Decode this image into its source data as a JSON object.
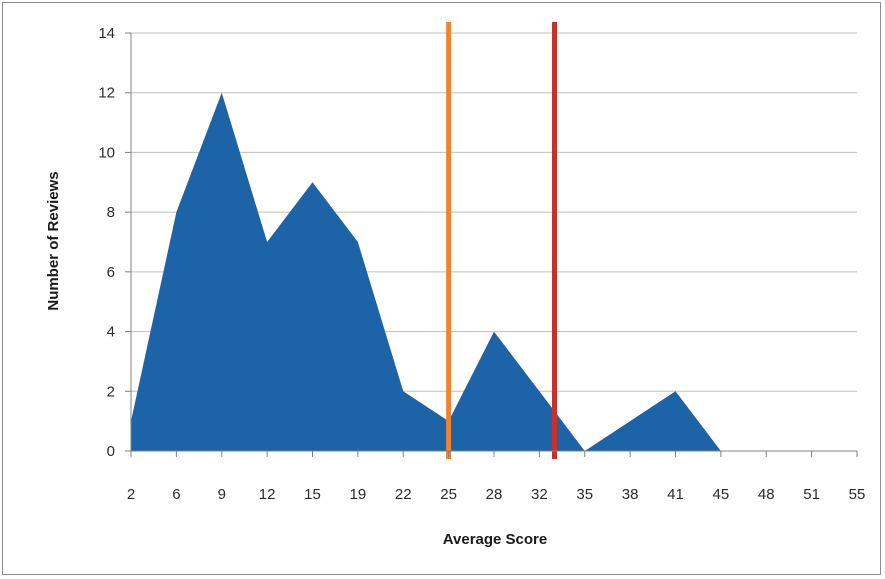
{
  "chart_data": {
    "type": "area",
    "xlabel": "Average Score",
    "ylabel": "Number of Reviews",
    "categories": [
      "2",
      "6",
      "9",
      "12",
      "15",
      "19",
      "22",
      "25",
      "28",
      "32",
      "35",
      "38",
      "41",
      "45",
      "48",
      "51",
      "55"
    ],
    "values": [
      1,
      8,
      12,
      7,
      9,
      7,
      2,
      1,
      4,
      2,
      0,
      1,
      2,
      0,
      null,
      null,
      null
    ],
    "ylim": [
      0,
      14
    ],
    "yticks": [
      "0",
      "2",
      "4",
      "6",
      "8",
      "10",
      "12",
      "14"
    ],
    "grid": true,
    "legend": "none",
    "reference_lines": [
      {
        "x": 25,
        "color": "#f0832d"
      },
      {
        "x": 33,
        "color": "#c8302c"
      }
    ],
    "colors": {
      "area": "#1c63a8",
      "grid": "#bfbfbf"
    }
  }
}
